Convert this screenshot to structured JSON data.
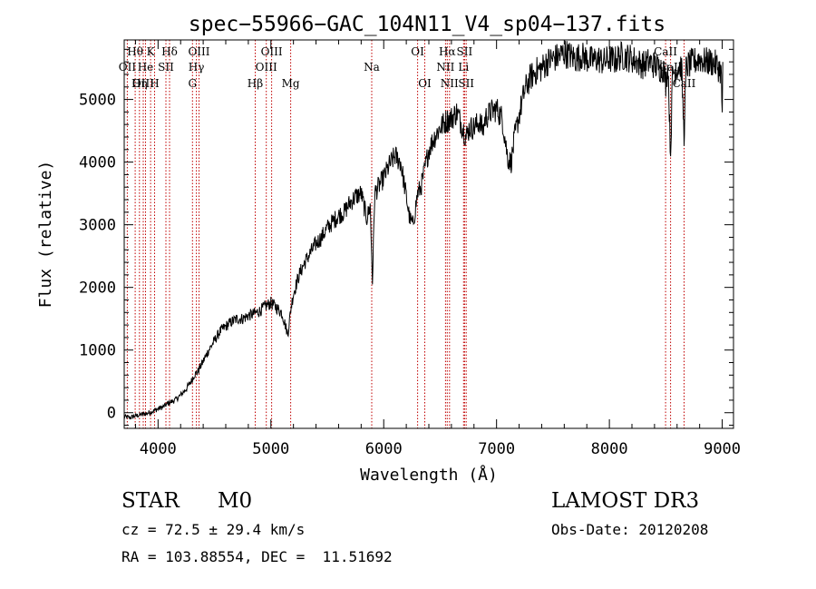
{
  "chart_data": {
    "type": "line",
    "title": "spec−55966−GAC_104N11_V4_sp04−137.fits",
    "xlabel": "Wavelength (Å)",
    "ylabel": "Flux (relative)",
    "xlim": [
      3700,
      9100
    ],
    "ylim": [
      -250,
      5950
    ],
    "x_ticks": [
      4000,
      5000,
      6000,
      7000,
      8000,
      9000
    ],
    "y_ticks": [
      0,
      1000,
      2000,
      3000,
      4000,
      5000
    ],
    "x_tick_labels": [
      "4000",
      "5000",
      "6000",
      "7000",
      "8000",
      "9000"
    ],
    "y_tick_labels": [
      "0",
      "1000",
      "2000",
      "3000",
      "4000",
      "5000"
    ],
    "series": [
      {
        "name": "spectrum",
        "x": [
          3700,
          3750,
          3800,
          3850,
          3900,
          3950,
          4000,
          4050,
          4100,
          4150,
          4200,
          4250,
          4300,
          4320,
          4350,
          4400,
          4450,
          4500,
          4550,
          4600,
          4650,
          4700,
          4750,
          4800,
          4850,
          4900,
          4950,
          5000,
          5050,
          5100,
          5150,
          5180,
          5200,
          5250,
          5300,
          5350,
          5400,
          5450,
          5500,
          5550,
          5600,
          5650,
          5700,
          5750,
          5800,
          5850,
          5880,
          5900,
          5920,
          5950,
          6000,
          6050,
          6100,
          6150,
          6200,
          6230,
          6260,
          6300,
          6330,
          6360,
          6400,
          6450,
          6500,
          6550,
          6600,
          6650,
          6700,
          6730,
          6760,
          6800,
          6850,
          6880,
          6900,
          6950,
          7000,
          7050,
          7100,
          7130,
          7160,
          7200,
          7250,
          7300,
          7350,
          7400,
          7450,
          7500,
          7550,
          7600,
          7650,
          7700,
          7750,
          7800,
          7850,
          7900,
          7950,
          8000,
          8050,
          8100,
          8150,
          8200,
          8250,
          8300,
          8350,
          8400,
          8450,
          8480,
          8500,
          8520,
          8542,
          8560,
          8580,
          8600,
          8620,
          8640,
          8662,
          8680,
          8700,
          8750,
          8800,
          8850,
          8900,
          8950,
          8990,
          9000,
          9005
        ],
        "y": [
          -60,
          -80,
          -50,
          -30,
          -10,
          20,
          60,
          100,
          160,
          200,
          280,
          380,
          520,
          600,
          650,
          820,
          1000,
          1150,
          1300,
          1380,
          1450,
          1500,
          1500,
          1550,
          1580,
          1620,
          1700,
          1750,
          1680,
          1580,
          1250,
          1700,
          1900,
          2200,
          2400,
          2550,
          2700,
          2800,
          2950,
          3050,
          3150,
          3200,
          3350,
          3450,
          3500,
          3100,
          3300,
          2100,
          3500,
          3600,
          3750,
          3950,
          4100,
          4000,
          3450,
          3100,
          3000,
          3500,
          3600,
          3850,
          4200,
          4400,
          4550,
          4650,
          4700,
          4800,
          4550,
          4400,
          4550,
          4550,
          4650,
          4500,
          4700,
          4800,
          4850,
          4700,
          4050,
          4000,
          4400,
          4750,
          5150,
          5350,
          5450,
          5500,
          5600,
          5650,
          5680,
          5750,
          5700,
          5650,
          5700,
          5650,
          5620,
          5650,
          5600,
          5650,
          5620,
          5700,
          5680,
          5650,
          5600,
          5550,
          5600,
          5550,
          5500,
          5500,
          5250,
          5550,
          4100,
          5450,
          5450,
          5500,
          5550,
          5500,
          4400,
          5500,
          5550,
          5600,
          5650,
          5600,
          5600,
          5550,
          5450,
          4800,
          5600
        ]
      }
    ],
    "lines": [
      {
        "label": "Hθ",
        "wl": 3797,
        "row": 1
      },
      {
        "label": "OII",
        "wl": 3727,
        "row": 2
      },
      {
        "label": "OIII",
        "wl": 3869,
        "row": 3
      },
      {
        "label": "He",
        "wl": 3889,
        "row": 2
      },
      {
        "label": "K",
        "wl": 3934,
        "row": 1
      },
      {
        "label": "Hη",
        "wl": 3835,
        "row": 3
      },
      {
        "label": "SII",
        "wl": 4070,
        "row": 2
      },
      {
        "label": "H",
        "wl": 3969,
        "row": 3
      },
      {
        "label": "Hδ",
        "wl": 4102,
        "row": 1
      },
      {
        "label": "OIII",
        "wl": 4363,
        "row": 1
      },
      {
        "label": "Hγ",
        "wl": 4340,
        "row": 2
      },
      {
        "label": "G",
        "wl": 4305,
        "row": 3
      },
      {
        "label": "Hβ",
        "wl": 4861,
        "row": 3
      },
      {
        "label": "OIII",
        "wl": 5007,
        "row": 1
      },
      {
        "label": "OIII",
        "wl": 4959,
        "row": 2
      },
      {
        "label": "Mg",
        "wl": 5175,
        "row": 3
      },
      {
        "label": "Na",
        "wl": 5894,
        "row": 2
      },
      {
        "label": "OI",
        "wl": 6300,
        "row": 1
      },
      {
        "label": "OI",
        "wl": 6364,
        "row": 3
      },
      {
        "label": "Hα",
        "wl": 6563,
        "row": 1
      },
      {
        "label": "SII",
        "wl": 6717,
        "row": 1
      },
      {
        "label": "NII",
        "wl": 6548,
        "row": 2
      },
      {
        "label": "Li",
        "wl": 6708,
        "row": 2
      },
      {
        "label": "NII",
        "wl": 6583,
        "row": 3
      },
      {
        "label": "SII",
        "wl": 6731,
        "row": 3
      },
      {
        "label": "CaII",
        "wl": 8498,
        "row": 1
      },
      {
        "label": "CaII",
        "wl": 8542,
        "row": 2
      },
      {
        "label": "CaII",
        "wl": 8662,
        "row": 3
      }
    ]
  },
  "info": {
    "object_class": "STAR",
    "subclass": "M0",
    "survey": "LAMOST DR3",
    "cz": "cz = 72.5 ± 29.4 km/s",
    "obs_date": "Obs-Date: 20120208",
    "coords": "RA = 103.88554, DEC =  11.51692"
  }
}
